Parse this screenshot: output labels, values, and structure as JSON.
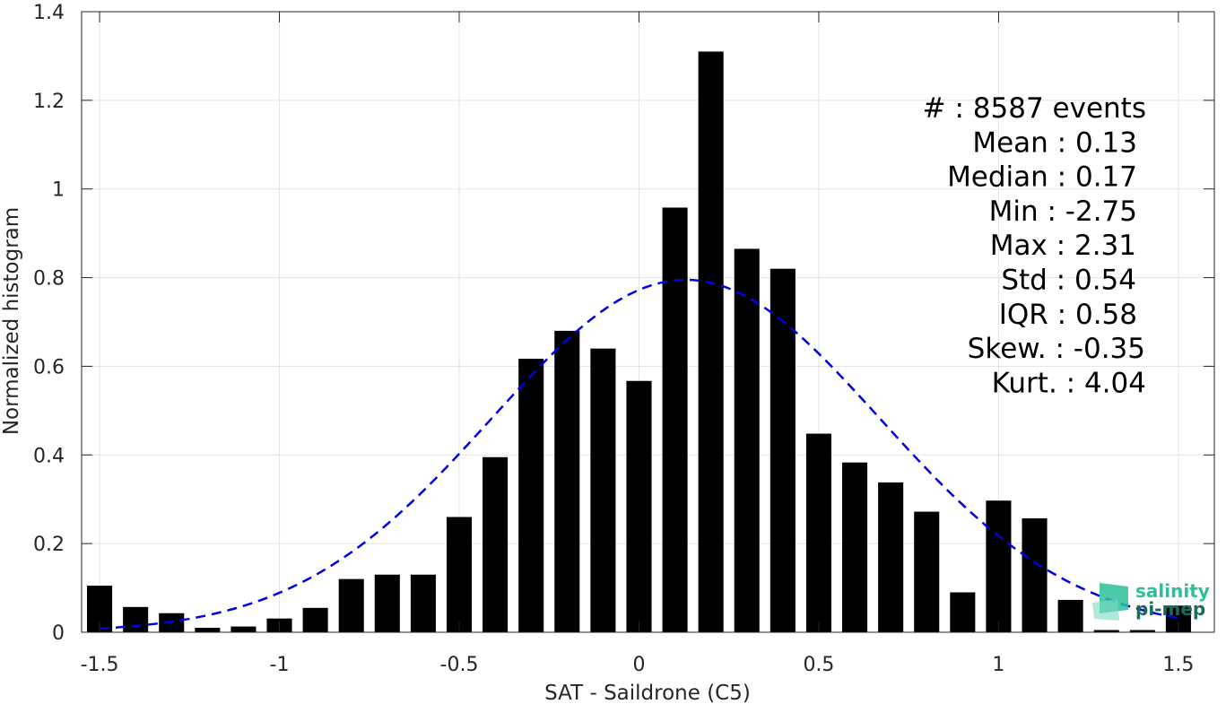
{
  "chart_data": {
    "type": "bar",
    "xlabel": "SAT - Saildrone (C5)",
    "ylabel": "Normalized histogram",
    "xlim": [
      -1.55,
      1.6
    ],
    "ylim": [
      0,
      1.4
    ],
    "grid": true,
    "x_ticks": [
      -1.5,
      -1,
      -0.5,
      0,
      0.5,
      1,
      1.5
    ],
    "x_tick_labels": [
      "-1.5",
      "-1",
      "-0.5",
      "0",
      "0.5",
      "1",
      "1.5"
    ],
    "y_ticks": [
      0,
      0.2,
      0.4,
      0.6,
      0.8,
      1,
      1.2,
      1.4
    ],
    "y_tick_labels": [
      "0",
      "0.2",
      "0.4",
      "0.6",
      "0.8",
      "1",
      "1.2",
      "1.4"
    ],
    "bar_width": 0.07,
    "bar_color": "#000000",
    "x": [
      -1.5,
      -1.4,
      -1.3,
      -1.2,
      -1.1,
      -1.0,
      -0.9,
      -0.8,
      -0.7,
      -0.6,
      -0.5,
      -0.4,
      -0.3,
      -0.2,
      -0.1,
      0.0,
      0.1,
      0.2,
      0.3,
      0.4,
      0.5,
      0.6,
      0.7,
      0.8,
      0.9,
      1.0,
      1.1,
      1.2,
      1.3,
      1.4,
      1.5
    ],
    "values": [
      0.105,
      0.057,
      0.043,
      0.01,
      0.013,
      0.031,
      0.055,
      0.12,
      0.13,
      0.13,
      0.26,
      0.395,
      0.617,
      0.68,
      0.64,
      0.567,
      0.958,
      1.31,
      0.865,
      0.82,
      0.448,
      0.383,
      0.338,
      0.272,
      0.09,
      0.297,
      0.257,
      0.073,
      0.005,
      0.005,
      0.06
    ],
    "fit_curve": {
      "type": "gaussian",
      "mean": 0.13,
      "std": 0.54,
      "peak": 0.795,
      "x_range": [
        -1.5,
        1.5
      ],
      "color": "#0000e6",
      "style": "dashed"
    },
    "annotations": [
      "#  : 8587 events",
      "Mean : 0.13",
      "Median : 0.17",
      "Min : -2.75",
      "Max : 2.31",
      "Std : 0.54",
      "IQR : 0.58",
      "Skew. : -0.35",
      "Kurt. : 4.04"
    ]
  },
  "logo": {
    "line1": "salinity",
    "line2": "pi-mep",
    "color1": "#2bbf9a",
    "color2": "#1a6b5a"
  }
}
